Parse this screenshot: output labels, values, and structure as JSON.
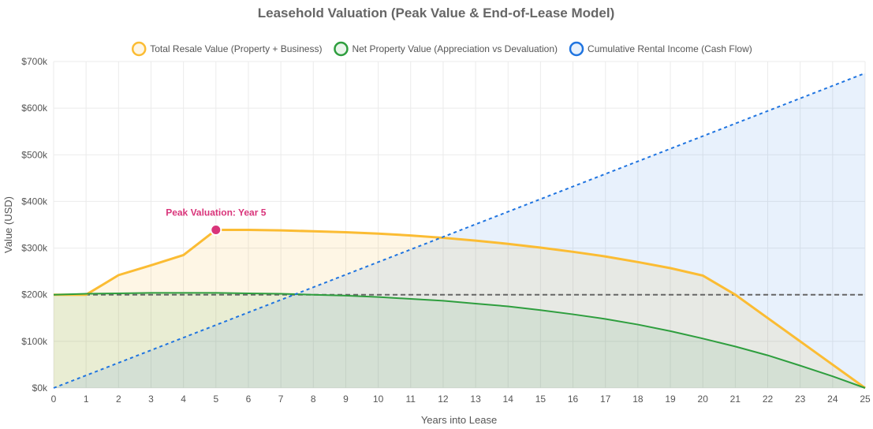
{
  "chart_data": {
    "type": "line",
    "title": "Leasehold Valuation (Peak Value & End-of-Lease Model)",
    "xlabel": "Years into Lease",
    "ylabel": "Value (USD)",
    "x": [
      0,
      1,
      2,
      3,
      4,
      5,
      6,
      7,
      8,
      9,
      10,
      11,
      12,
      13,
      14,
      15,
      16,
      17,
      18,
      19,
      20,
      21,
      22,
      23,
      24,
      25
    ],
    "xlim": [
      0,
      25
    ],
    "ylim": [
      0,
      700000
    ],
    "x_ticks": [
      "0",
      "1",
      "2",
      "3",
      "4",
      "5",
      "6",
      "7",
      "8",
      "9",
      "10",
      "11",
      "12",
      "13",
      "14",
      "15",
      "16",
      "17",
      "18",
      "19",
      "20",
      "21",
      "22",
      "23",
      "24",
      "25"
    ],
    "y_ticks": [
      {
        "value": 0,
        "label": "$0k"
      },
      {
        "value": 100000,
        "label": "$100k"
      },
      {
        "value": 200000,
        "label": "$200k"
      },
      {
        "value": 300000,
        "label": "$300k"
      },
      {
        "value": 400000,
        "label": "$400k"
      },
      {
        "value": 500000,
        "label": "$500k"
      },
      {
        "value": 600000,
        "label": "$600k"
      },
      {
        "value": 700000,
        "label": "$700k"
      }
    ],
    "grid": true,
    "legend_position": "top",
    "baseline": {
      "value": 200000,
      "color": "#666666"
    },
    "series": [
      {
        "name": "Total Resale Value (Property + Business)",
        "color": "#fbbc33",
        "fill": "rgba(251,188,51,0.13)",
        "values": [
          200000,
          200000,
          242000,
          263000,
          285000,
          339000,
          339000,
          338000,
          336000,
          334000,
          331000,
          327000,
          322000,
          316000,
          309000,
          301000,
          292000,
          282000,
          270000,
          257000,
          241000,
          200000,
          150000,
          100000,
          50000,
          0
        ]
      },
      {
        "name": "Net Property Value (Appreciation vs Devaluation)",
        "color": "#2e9e3e",
        "fill": "rgba(46,158,62,0.10)",
        "values": [
          200000,
          202000,
          203000,
          204000,
          204000,
          204000,
          203000,
          202000,
          200000,
          198000,
          195000,
          191000,
          187000,
          181000,
          175000,
          167000,
          158000,
          148000,
          136000,
          122000,
          106000,
          89000,
          70000,
          48000,
          25000,
          0
        ]
      },
      {
        "name": "Cumulative Rental Income (Cash Flow)",
        "color": "#1f74e0",
        "fill": "rgba(31,116,224,0.10)",
        "values": [
          0,
          27000,
          54000,
          81000,
          108000,
          135000,
          162000,
          189000,
          216000,
          243000,
          270000,
          297000,
          324000,
          351000,
          378000,
          405000,
          432000,
          459000,
          486000,
          513000,
          540000,
          567000,
          594000,
          621000,
          648000,
          675000
        ]
      }
    ],
    "annotation": {
      "text": "Peak Valuation: Year 5",
      "x": 5,
      "y": 339000,
      "color": "#d9347a"
    }
  }
}
